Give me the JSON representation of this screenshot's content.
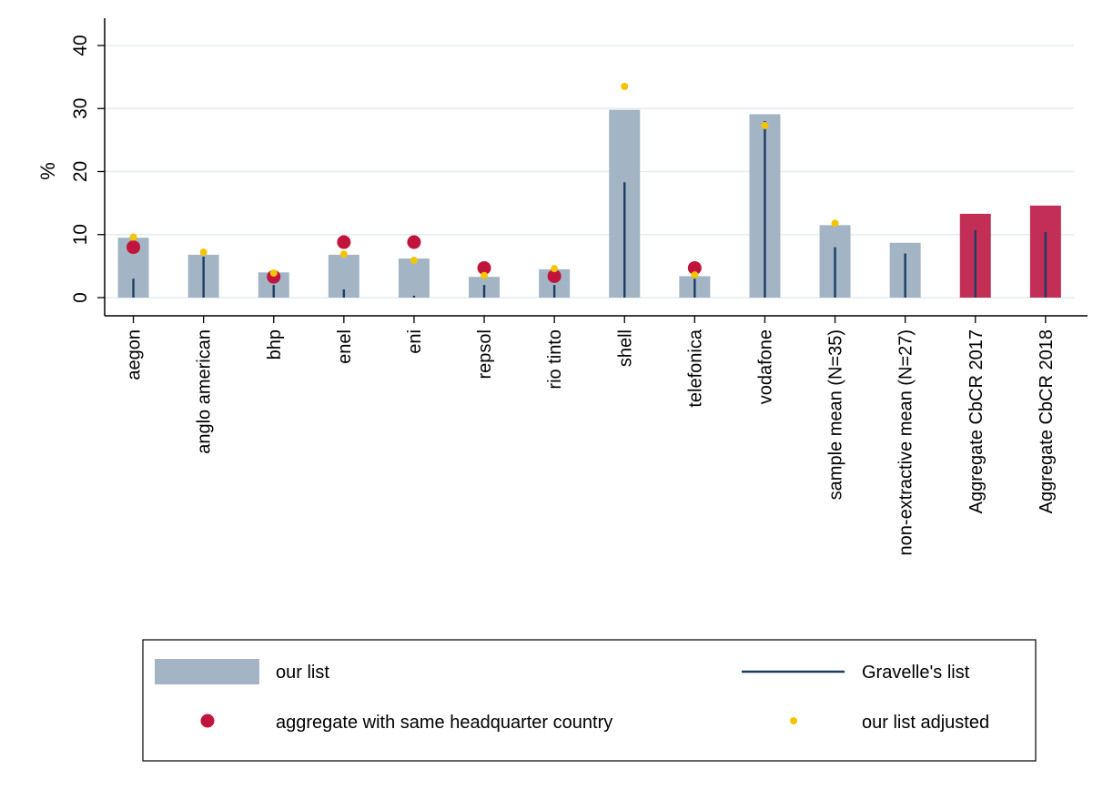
{
  "chart_data": {
    "type": "bar",
    "title": "",
    "xlabel": "",
    "ylabel": "%",
    "ylim": [
      0,
      40
    ],
    "yticks": [
      0,
      10,
      20,
      30,
      40
    ],
    "grid": true,
    "legend_position": "bottom",
    "categories": [
      "aegon",
      "anglo american",
      "bhp",
      "enel",
      "eni",
      "repsol",
      "rio tinto",
      "shell",
      "telefonica",
      "vodafone",
      "sample mean (N=35)",
      "non-extractive mean (N=27)",
      "Aggregate CbCR 2017",
      "Aggregate CbCR 2018"
    ],
    "series": [
      {
        "name": "our list",
        "kind": "bar",
        "color": "#a3b4c5",
        "values": [
          9.5,
          6.8,
          4.0,
          6.8,
          6.2,
          3.3,
          4.5,
          29.8,
          3.4,
          29.1,
          11.5,
          8.7,
          null,
          null
        ]
      },
      {
        "name": "Gravelle's list",
        "kind": "spike",
        "color": "#1a3d63",
        "values": [
          3.0,
          6.5,
          2.0,
          1.3,
          0.3,
          2.0,
          2.0,
          18.3,
          3.0,
          28.0,
          8.0,
          7.0,
          10.7,
          10.4
        ]
      },
      {
        "name": "aggregate with same headquarter country",
        "kind": "large-dot",
        "color": "#c0143c",
        "values": [
          8.0,
          null,
          3.3,
          8.8,
          8.8,
          4.7,
          3.4,
          null,
          4.7,
          null,
          null,
          null,
          null,
          null
        ]
      },
      {
        "name": "our list adjusted",
        "kind": "small-dot",
        "color": "#f4c400",
        "values": [
          9.6,
          7.2,
          3.9,
          6.9,
          5.9,
          3.5,
          4.6,
          33.5,
          3.6,
          27.3,
          11.8,
          null,
          null,
          null
        ]
      }
    ],
    "aggregate_bars": {
      "color": "#c22e55",
      "values": [
        null,
        null,
        null,
        null,
        null,
        null,
        null,
        null,
        null,
        null,
        null,
        null,
        13.3,
        14.6
      ]
    }
  }
}
